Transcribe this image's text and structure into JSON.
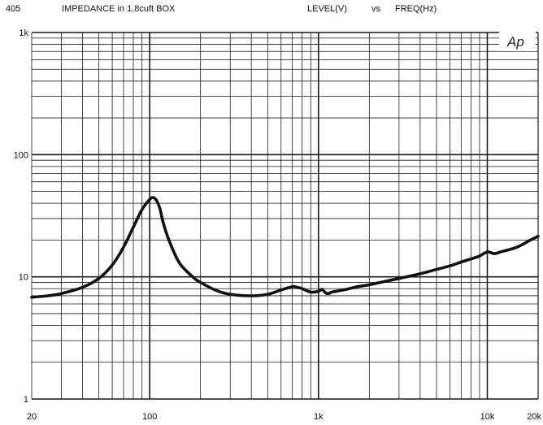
{
  "header": {
    "code": "405",
    "title": "IMPEDANCE  in 1.8cuft BOX",
    "level": "LEVEL(V)",
    "vs": "vs",
    "freq": "FREQ(Hz)"
  },
  "logo": "Ap",
  "colors": {
    "grid": "#1a1a1a",
    "curve": "#111111",
    "background": "#ffffff"
  },
  "chart_data": {
    "type": "line",
    "title": "IMPEDANCE  in 1.8cuft BOX",
    "xlabel": "FREQ(Hz)",
    "ylabel": "LEVEL(V)",
    "xscale": "log",
    "yscale": "log",
    "xlim": [
      20,
      20000
    ],
    "ylim": [
      1,
      1000
    ],
    "x_ticks": [
      {
        "value": 20,
        "label": "20"
      },
      {
        "value": 100,
        "label": "100"
      },
      {
        "value": 1000,
        "label": "1k"
      },
      {
        "value": 10000,
        "label": "10k"
      },
      {
        "value": 20000,
        "label": "20k"
      }
    ],
    "y_ticks": [
      {
        "value": 1000,
        "label": "1k"
      },
      {
        "value": 100,
        "label": "100"
      },
      {
        "value": 10,
        "label": "10"
      },
      {
        "value": 1,
        "label": "1"
      }
    ],
    "grid": true,
    "series": [
      {
        "x": [
          20,
          25,
          30,
          40,
          50,
          60,
          70,
          80,
          90,
          100,
          105,
          110,
          115,
          120,
          130,
          150,
          180,
          200,
          250,
          300,
          400,
          500,
          600,
          700,
          750,
          800,
          900,
          1000,
          1050,
          1100,
          1150,
          1200,
          1400,
          1700,
          2000,
          2500,
          3000,
          4000,
          5000,
          6000,
          7000,
          8000,
          9000,
          10000,
          11000,
          12000,
          15000,
          18000,
          20000
        ],
        "y": [
          6.8,
          7.0,
          7.3,
          8.2,
          9.7,
          12.5,
          17.5,
          25.5,
          35.5,
          43,
          44.5,
          42,
          36,
          28,
          20,
          13,
          10,
          9,
          7.7,
          7.2,
          7.0,
          7.2,
          7.8,
          8.3,
          8.2,
          8.0,
          7.5,
          7.6,
          7.9,
          7.4,
          7.3,
          7.5,
          7.8,
          8.3,
          8.6,
          9.2,
          9.7,
          10.6,
          11.5,
          12.3,
          13.2,
          14.0,
          14.8,
          16.0,
          15.5,
          16.0,
          17.5,
          20.0,
          21.5
        ]
      }
    ]
  }
}
